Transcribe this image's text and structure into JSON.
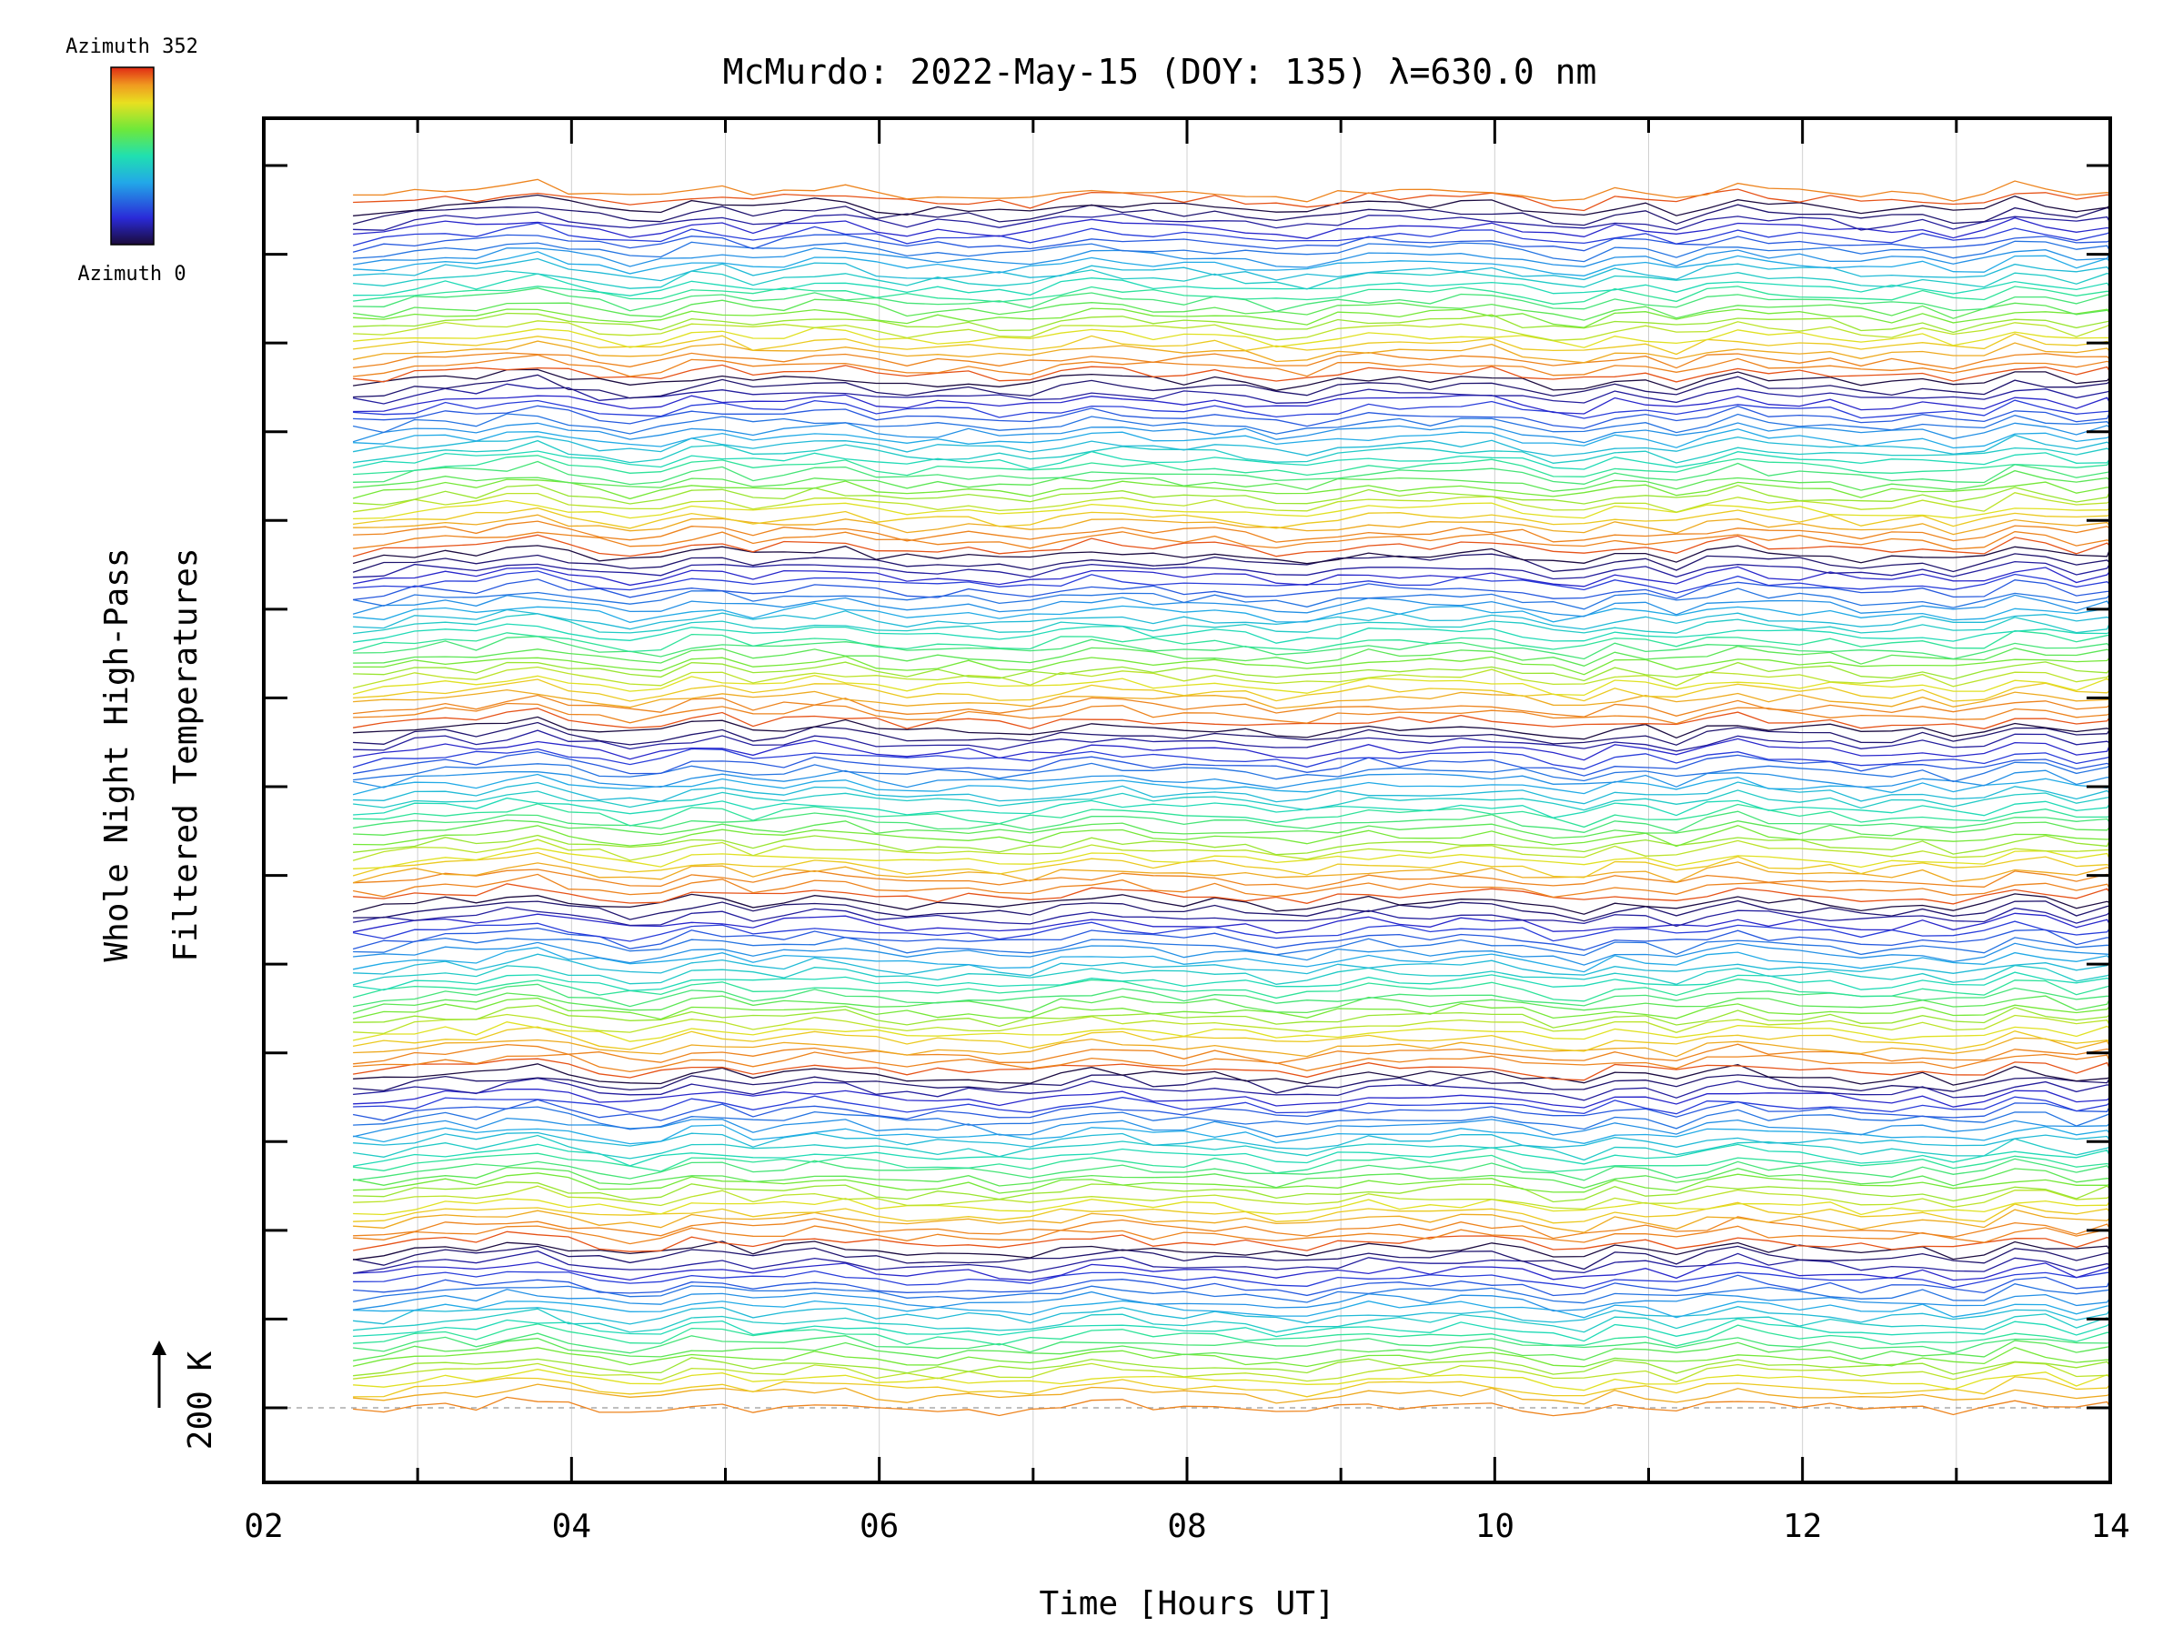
{
  "chart_data": {
    "type": "line",
    "title": "McMurdo: 2022-May-15 (DOY: 135) λ=630.0 nm",
    "xlabel": "Time [Hours UT]",
    "ylabel_line1": "Whole Night High-Pass",
    "ylabel_line2": "Filtered Temperatures",
    "scale_label": "200 K",
    "x_ticks": [
      "02",
      "04",
      "06",
      "08",
      "10",
      "12",
      "14"
    ],
    "xlim": [
      2,
      14
    ],
    "y_major_ticks": 15,
    "colorbar": {
      "top_label": "Azimuth 352",
      "bottom_label": "Azimuth 0",
      "colormap": "rainbow",
      "range": [
        0,
        352
      ]
    },
    "stack_groups": 7,
    "azimuth_bins_per_group": 8,
    "rows_per_bin": 3,
    "data_start_hour": 2.58,
    "data_end_hour": 14.0,
    "sample_step_hours": 0.2,
    "baseline_color": "#aaaaaa",
    "colors": {
      "azimuth_0": "#1a0a2e",
      "azimuth_mid": "#2ad8b0",
      "azimuth_352": "#e8401a"
    }
  }
}
